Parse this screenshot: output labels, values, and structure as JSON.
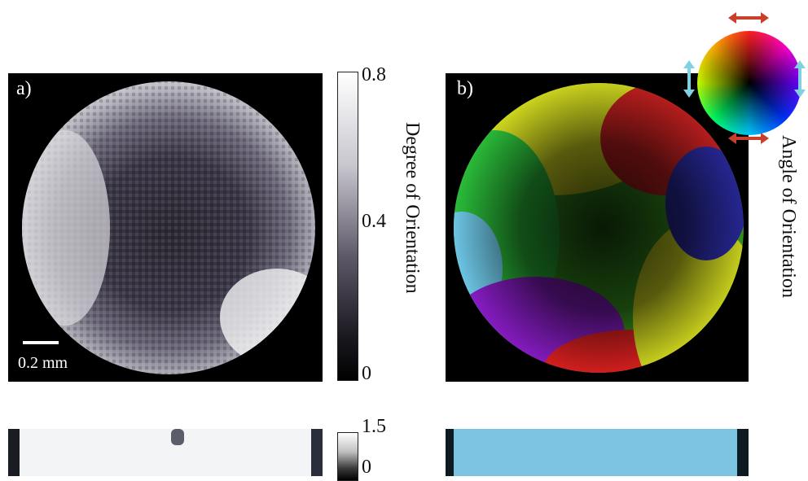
{
  "panel_a": {
    "label": "a)",
    "scale_text": "0.2 mm"
  },
  "panel_b": {
    "label": "b)"
  },
  "colorbar_top": {
    "max": "0.8",
    "mid": "0.4",
    "min": "0",
    "title": "Degree of Orientation"
  },
  "colorbar_bottom": {
    "max": "1.5",
    "min": "0"
  },
  "color_wheel": {
    "title": "Angle of Orientation"
  },
  "colors": {
    "arrow_horizontal": "#c8402a",
    "arrow_vertical": "#7fd3e0",
    "bottom_right_fill": "#7cc3e2"
  }
}
